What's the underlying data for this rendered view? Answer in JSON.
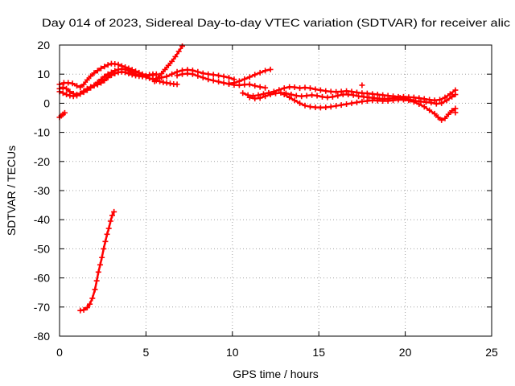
{
  "chart_data": {
    "type": "scatter",
    "title": "Day 014 of 2023, Sidereal Day-to-day VTEC variation (SDTVAR) for receiver alic",
    "xlabel": "GPS time / hours",
    "ylabel": "SDTVAR / TECUs",
    "xlim": [
      0,
      25
    ],
    "ylim": [
      -80,
      20
    ],
    "xticks": [
      0,
      5,
      10,
      15,
      20,
      25
    ],
    "yticks": [
      20,
      10,
      0,
      -10,
      -20,
      -30,
      -40,
      -50,
      -60,
      -70,
      -80
    ],
    "grid": true,
    "marker": "plus",
    "color": "#ff0000",
    "series": [
      {
        "points": [
          [
            1.2,
            -71.2
          ],
          [
            1.4,
            -71
          ],
          [
            1.6,
            -70.2
          ],
          [
            1.75,
            -69
          ],
          [
            1.9,
            -67
          ],
          [
            2.05,
            -64
          ],
          [
            2.15,
            -61
          ],
          [
            2.25,
            -58
          ],
          [
            2.35,
            -55.5
          ],
          [
            2.45,
            -53
          ],
          [
            2.55,
            -50
          ],
          [
            2.65,
            -47.5
          ],
          [
            2.75,
            -45
          ],
          [
            2.85,
            -43
          ],
          [
            2.95,
            -40.5
          ],
          [
            3.05,
            -38.5
          ],
          [
            3.15,
            -37.3
          ]
        ]
      },
      {
        "points": [
          [
            0.0,
            -4.8
          ],
          [
            0.1,
            -4.3
          ],
          [
            0.2,
            -3.8
          ],
          [
            0.3,
            -3.3
          ]
        ]
      },
      {
        "points": [
          [
            5.5,
            7.5
          ],
          [
            5.7,
            8.8
          ],
          [
            5.9,
            10.2
          ],
          [
            6.1,
            11.6
          ],
          [
            6.3,
            13
          ],
          [
            6.5,
            14.4
          ],
          [
            6.7,
            16
          ],
          [
            6.9,
            17.8
          ],
          [
            7.1,
            19.6
          ]
        ]
      },
      {
        "points": [
          [
            0.0,
            6.5
          ],
          [
            0.25,
            7
          ],
          [
            0.5,
            7
          ],
          [
            0.75,
            6.8
          ],
          [
            1.0,
            6
          ],
          [
            1.2,
            5.5
          ],
          [
            1.4,
            6.5
          ],
          [
            1.6,
            8
          ],
          [
            1.8,
            9.3
          ],
          [
            2.0,
            10.4
          ],
          [
            2.2,
            11.2
          ],
          [
            2.4,
            12
          ],
          [
            2.6,
            12.6
          ],
          [
            2.8,
            13.2
          ],
          [
            3.0,
            13.6
          ],
          [
            3.2,
            13.5
          ],
          [
            3.4,
            13.3
          ],
          [
            3.6,
            12.8
          ],
          [
            3.8,
            12.4
          ],
          [
            4.0,
            12
          ],
          [
            4.2,
            11.5
          ],
          [
            4.4,
            11
          ],
          [
            4.6,
            10.5
          ],
          [
            4.8,
            10
          ],
          [
            5.0,
            9.5
          ],
          [
            5.2,
            9.5
          ],
          [
            5.4,
            10
          ],
          [
            5.6,
            10
          ]
        ]
      },
      {
        "points": [
          [
            0.0,
            5
          ],
          [
            0.2,
            5.5
          ],
          [
            0.4,
            5
          ],
          [
            0.6,
            4
          ],
          [
            0.8,
            3.3
          ],
          [
            1.0,
            3
          ],
          [
            1.2,
            3.2
          ],
          [
            1.4,
            3.8
          ],
          [
            1.6,
            4.5
          ],
          [
            1.8,
            5.3
          ],
          [
            2.0,
            6.2
          ],
          [
            2.2,
            7.2
          ],
          [
            2.4,
            8.2
          ],
          [
            2.6,
            9.2
          ],
          [
            2.8,
            10
          ],
          [
            3.0,
            10.6
          ],
          [
            3.2,
            11.2
          ],
          [
            3.4,
            11.6
          ],
          [
            3.6,
            11.8
          ],
          [
            3.8,
            11.6
          ],
          [
            4.0,
            11.2
          ],
          [
            4.2,
            10.6
          ],
          [
            4.4,
            10
          ],
          [
            4.6,
            9.6
          ],
          [
            4.8,
            9.3
          ],
          [
            5.0,
            9
          ],
          [
            5.2,
            8.6
          ],
          [
            5.4,
            8.2
          ],
          [
            5.6,
            7.8
          ],
          [
            5.8,
            7.5
          ],
          [
            6.0,
            7.2
          ],
          [
            6.2,
            7
          ],
          [
            6.4,
            6.8
          ],
          [
            6.6,
            6.6
          ],
          [
            6.8,
            6.5
          ]
        ]
      },
      {
        "points": [
          [
            0.0,
            4
          ],
          [
            0.2,
            3.5
          ],
          [
            0.4,
            3
          ],
          [
            0.6,
            2.6
          ],
          [
            0.8,
            2.4
          ],
          [
            1.0,
            2.6
          ],
          [
            1.2,
            3.4
          ],
          [
            1.4,
            4.2
          ],
          [
            1.6,
            5
          ],
          [
            1.8,
            5.6
          ],
          [
            2.0,
            6
          ],
          [
            2.2,
            6.4
          ],
          [
            2.4,
            7
          ],
          [
            2.6,
            7.8
          ],
          [
            2.8,
            8.8
          ],
          [
            3.0,
            9.6
          ],
          [
            3.2,
            10.2
          ],
          [
            3.4,
            10.6
          ],
          [
            3.6,
            10.8
          ],
          [
            3.8,
            10.6
          ],
          [
            4.0,
            10.2
          ],
          [
            4.2,
            9.8
          ],
          [
            4.4,
            9.5
          ],
          [
            4.6,
            9.3
          ],
          [
            4.8,
            9.2
          ],
          [
            5.0,
            9.4
          ],
          [
            5.2,
            9.8
          ],
          [
            5.4,
            9.6
          ]
        ]
      },
      {
        "points": [
          [
            5.6,
            8.5
          ],
          [
            5.9,
            8.8
          ],
          [
            6.2,
            9.2
          ],
          [
            6.5,
            10
          ],
          [
            6.8,
            10.8
          ],
          [
            7.1,
            11.3
          ],
          [
            7.4,
            11.5
          ],
          [
            7.7,
            11.3
          ],
          [
            8.0,
            10.8
          ],
          [
            8.3,
            10.3
          ],
          [
            8.6,
            10
          ],
          [
            8.9,
            9.8
          ],
          [
            9.2,
            9.5
          ],
          [
            9.5,
            9.2
          ],
          [
            9.8,
            8.8
          ],
          [
            10.1,
            8.2
          ]
        ]
      },
      {
        "points": [
          [
            6.8,
            9.5
          ],
          [
            7.1,
            10
          ],
          [
            7.4,
            10.2
          ],
          [
            7.7,
            10
          ],
          [
            8.0,
            9.4
          ],
          [
            8.3,
            8.8
          ],
          [
            8.6,
            8.2
          ],
          [
            8.9,
            7.8
          ],
          [
            9.2,
            7.4
          ],
          [
            9.5,
            7
          ],
          [
            9.8,
            6.6
          ],
          [
            10.1,
            6.3
          ],
          [
            10.4,
            6.2
          ],
          [
            10.7,
            6.4
          ],
          [
            11.0,
            6.5
          ],
          [
            11.3,
            6
          ],
          [
            11.6,
            5.6
          ],
          [
            11.9,
            5.3
          ]
        ]
      },
      {
        "points": [
          [
            9.8,
            6.8
          ],
          [
            10.1,
            7
          ],
          [
            10.4,
            7.6
          ],
          [
            10.7,
            8.3
          ],
          [
            11.0,
            9
          ],
          [
            11.3,
            9.8
          ],
          [
            11.6,
            10.5
          ],
          [
            11.9,
            11.2
          ],
          [
            12.2,
            11.6
          ]
        ]
      },
      {
        "points": [
          [
            10.6,
            3.5
          ],
          [
            10.9,
            2.8
          ],
          [
            11.2,
            2.5
          ],
          [
            11.5,
            2.8
          ],
          [
            11.8,
            3.2
          ],
          [
            12.1,
            3.6
          ],
          [
            12.4,
            4
          ],
          [
            12.7,
            4.6
          ],
          [
            13.0,
            5.2
          ],
          [
            13.3,
            5.6
          ],
          [
            13.6,
            5.5
          ],
          [
            13.9,
            5.2
          ],
          [
            14.2,
            5.4
          ],
          [
            14.5,
            5.2
          ],
          [
            14.8,
            4.8
          ],
          [
            15.1,
            4.5
          ],
          [
            15.4,
            4.2
          ],
          [
            15.7,
            4
          ],
          [
            16.0,
            3.9
          ],
          [
            16.3,
            4
          ],
          [
            16.6,
            4.2
          ],
          [
            16.9,
            4
          ],
          [
            17.2,
            3.7
          ],
          [
            17.5,
            3.5
          ],
          [
            17.8,
            3.4
          ],
          [
            18.1,
            3.2
          ],
          [
            18.4,
            3
          ],
          [
            18.7,
            2.8
          ],
          [
            19.0,
            2.6
          ],
          [
            19.3,
            2.4
          ],
          [
            19.6,
            2.2
          ],
          [
            19.9,
            2.2
          ],
          [
            20.2,
            2.1
          ],
          [
            20.5,
            2
          ],
          [
            20.8,
            1.8
          ],
          [
            21.1,
            1.5
          ],
          [
            21.4,
            1.2
          ],
          [
            21.7,
            1
          ],
          [
            22.0,
            1.2
          ],
          [
            22.3,
            2
          ],
          [
            22.6,
            3.2
          ],
          [
            22.9,
            4.5
          ]
        ]
      },
      {
        "points": [
          [
            11.0,
            2
          ],
          [
            11.3,
            1.6
          ],
          [
            11.6,
            1.8
          ],
          [
            11.9,
            2.4
          ],
          [
            12.2,
            3
          ],
          [
            12.5,
            3.4
          ],
          [
            12.8,
            3.6
          ],
          [
            13.1,
            3.4
          ],
          [
            13.4,
            3
          ],
          [
            13.7,
            2.6
          ],
          [
            14.0,
            2.4
          ],
          [
            14.3,
            2.6
          ],
          [
            14.6,
            2.8
          ],
          [
            14.9,
            2.6
          ],
          [
            15.2,
            2.2
          ],
          [
            15.5,
            2
          ],
          [
            15.8,
            2.2
          ],
          [
            16.1,
            2.6
          ],
          [
            16.4,
            3
          ],
          [
            16.7,
            3
          ],
          [
            17.0,
            2.8
          ],
          [
            17.3,
            2.4
          ],
          [
            17.6,
            2.2
          ],
          [
            17.9,
            2
          ],
          [
            18.2,
            1.8
          ],
          [
            18.5,
            1.6
          ],
          [
            18.8,
            1.5
          ],
          [
            19.1,
            1.6
          ],
          [
            19.4,
            1.8
          ],
          [
            19.7,
            1.9
          ],
          [
            20.0,
            1.6
          ],
          [
            20.3,
            1.2
          ],
          [
            20.6,
            0.8
          ],
          [
            20.9,
            0.6
          ],
          [
            21.2,
            0.4
          ],
          [
            21.5,
            0.2
          ],
          [
            21.8,
            -0.2
          ],
          [
            22.1,
            0
          ],
          [
            22.4,
            1
          ],
          [
            22.7,
            2.2
          ],
          [
            22.9,
            3
          ]
        ]
      },
      {
        "points": [
          [
            13.0,
            3
          ],
          [
            13.3,
            2
          ],
          [
            13.6,
            1
          ],
          [
            13.9,
            0
          ],
          [
            14.2,
            -0.8
          ],
          [
            14.5,
            -1.2
          ],
          [
            14.8,
            -1.4
          ],
          [
            15.1,
            -1.5
          ],
          [
            15.4,
            -1.4
          ],
          [
            15.7,
            -1.2
          ],
          [
            16.0,
            -0.9
          ],
          [
            16.3,
            -0.6
          ],
          [
            16.6,
            -0.3
          ],
          [
            16.9,
            0
          ],
          [
            17.2,
            0.3
          ],
          [
            17.5,
            0.6
          ],
          [
            17.8,
            0.8
          ],
          [
            18.1,
            1
          ],
          [
            18.4,
            0.9
          ],
          [
            18.7,
            0.8
          ],
          [
            19.0,
            0.8
          ],
          [
            19.3,
            1
          ],
          [
            19.6,
            1.2
          ],
          [
            19.9,
            1.2
          ],
          [
            20.2,
            1
          ],
          [
            20.5,
            0.5
          ],
          [
            20.8,
            -0.3
          ],
          [
            21.1,
            -1.2
          ],
          [
            21.4,
            -2.4
          ],
          [
            21.7,
            -3.6
          ],
          [
            21.9,
            -4.8
          ],
          [
            22.1,
            -5.8
          ],
          [
            22.3,
            -5.2
          ],
          [
            22.5,
            -3.8
          ],
          [
            22.7,
            -2.6
          ],
          [
            22.9,
            -1.8
          ]
        ]
      },
      {
        "points": [
          [
            17.5,
            6.2
          ]
        ]
      },
      {
        "points": [
          [
            22.9,
            -3.2
          ]
        ]
      }
    ]
  }
}
